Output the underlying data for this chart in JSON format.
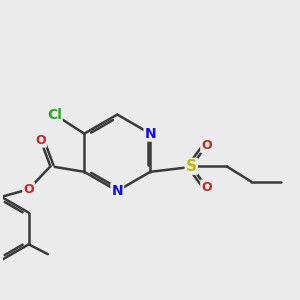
{
  "bg_color": "#ebebeb",
  "bond_color": "#3a3a3a",
  "bond_width": 1.8,
  "atom_colors": {
    "N": "#1010dd",
    "O": "#cc2222",
    "Cl": "#22aa22",
    "S": "#bbbb00"
  },
  "font_size": 10
}
